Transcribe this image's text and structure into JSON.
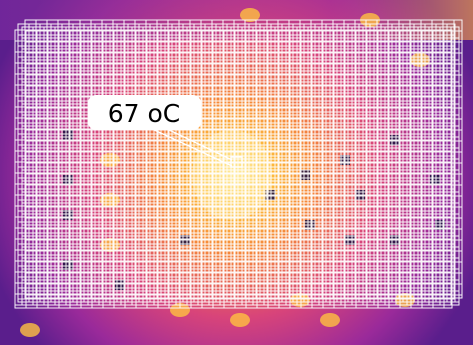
{
  "annotation": {
    "label": "67 oC"
  }
}
